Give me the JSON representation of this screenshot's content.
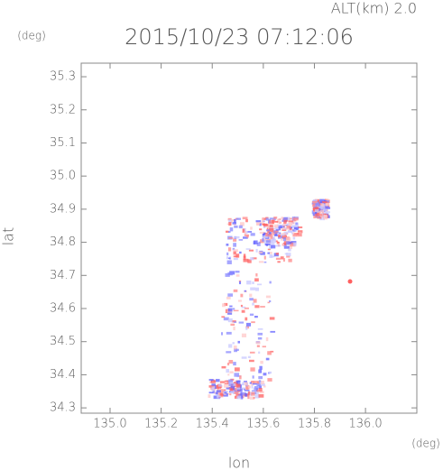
{
  "chart_data": {
    "type": "map",
    "annotation": "ALT(km) 2.0",
    "title": "2015/10/23 07:12:06",
    "y_unit": "(deg)",
    "x_unit": "(deg)",
    "ylabel": "lat",
    "xlabel": "lon",
    "xlim": [
      134.887,
      136.201
    ],
    "ylim": [
      34.284,
      35.341
    ],
    "xticks": [
      {
        "value": 135.0,
        "label": "135.0"
      },
      135.2,
      135.4,
      135.6,
      135.8,
      {
        "value": 136.0,
        "label": "136.0"
      }
    ],
    "yticks": [
      34.3,
      34.4,
      34.5,
      34.6,
      34.7,
      34.8,
      34.9,
      {
        "value": 35.0,
        "label": "35.0"
      },
      35.1,
      35.2,
      35.3
    ]
  }
}
